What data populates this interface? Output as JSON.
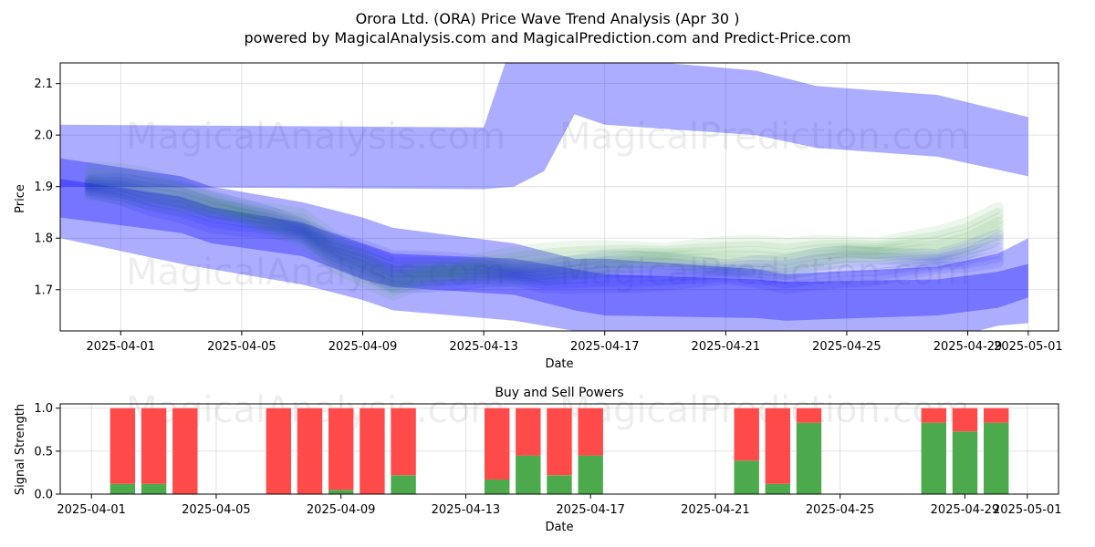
{
  "page": {
    "title": "Orora Ltd. (ORA) Price Wave Trend Analysis (Apr 30 )",
    "subtitle": "powered by MagicalAnalysis.com and MagicalPrediction.com and Predict-Price.com",
    "watermarks": [
      "MagicalAnalysis.com",
      "MagicalPrediction.com"
    ]
  },
  "colors": {
    "blue_band": "#0000ff",
    "green_band": "#2ca02c",
    "buy": "#4caa4c",
    "sell": "#ff4a4a",
    "grid": "#d9d9d9"
  },
  "chart_data": [
    {
      "type": "area",
      "title": "",
      "xlabel": "Date",
      "ylabel": "Price",
      "ylim": [
        1.62,
        2.14
      ],
      "xlim": [
        "2025-03-30",
        "2025-05-02"
      ],
      "x_ticks": [
        "2025-04-01",
        "2025-04-05",
        "2025-04-09",
        "2025-04-13",
        "2025-04-17",
        "2025-04-21",
        "2025-04-25",
        "2025-04-29",
        "2025-05-01"
      ],
      "y_ticks": [
        1.7,
        1.8,
        1.9,
        2.0,
        2.1
      ],
      "grid": true,
      "bands": [
        {
          "color": "blue",
          "x": [
            "2025-03-30",
            "2025-04-03",
            "2025-04-04",
            "2025-04-07",
            "2025-04-09",
            "2025-04-10",
            "2025-04-14",
            "2025-04-16",
            "2025-04-17",
            "2025-04-22",
            "2025-04-23",
            "2025-04-28",
            "2025-04-30",
            "2025-05-01"
          ],
          "upper": [
            1.955,
            1.92,
            1.9,
            1.87,
            1.84,
            1.82,
            1.79,
            1.76,
            1.76,
            1.74,
            1.73,
            1.745,
            1.77,
            1.8
          ],
          "lower": [
            1.8,
            1.75,
            1.74,
            1.71,
            1.68,
            1.66,
            1.64,
            1.62,
            1.62,
            1.6,
            1.58,
            1.6,
            1.63,
            1.635
          ]
        },
        {
          "color": "blue",
          "x": [
            "2025-03-30",
            "2025-04-03",
            "2025-04-04",
            "2025-04-07",
            "2025-04-09",
            "2025-04-10",
            "2025-04-14",
            "2025-04-16",
            "2025-04-17",
            "2025-04-22",
            "2025-04-23",
            "2025-04-28",
            "2025-04-30",
            "2025-05-01"
          ],
          "upper": [
            1.915,
            1.88,
            1.86,
            1.83,
            1.79,
            1.77,
            1.76,
            1.74,
            1.73,
            1.72,
            1.715,
            1.72,
            1.735,
            1.75
          ],
          "lower": [
            1.84,
            1.81,
            1.79,
            1.765,
            1.72,
            1.705,
            1.69,
            1.66,
            1.65,
            1.645,
            1.64,
            1.65,
            1.665,
            1.685
          ]
        },
        {
          "color": "blue",
          "x": [
            "2025-03-30",
            "2025-04-13",
            "2025-04-14",
            "2025-04-15",
            "2025-04-16",
            "2025-04-17",
            "2025-04-22",
            "2025-04-24",
            "2025-04-28",
            "2025-05-01"
          ],
          "upper": [
            2.02,
            2.015,
            2.19,
            2.18,
            2.16,
            2.15,
            2.125,
            2.095,
            2.078,
            2.035
          ],
          "lower": [
            1.9,
            1.895,
            1.9,
            1.93,
            2.04,
            2.02,
            2.0,
            1.975,
            1.958,
            1.92
          ]
        }
      ],
      "lines": [
        {
          "color": "blue",
          "x": [
            "2025-03-31",
            "2025-04-01",
            "2025-04-02",
            "2025-04-03",
            "2025-04-04",
            "2025-04-05",
            "2025-04-06",
            "2025-04-07",
            "2025-04-08",
            "2025-04-09",
            "2025-04-10",
            "2025-04-11",
            "2025-04-12",
            "2025-04-13",
            "2025-04-14",
            "2025-04-15",
            "2025-04-16",
            "2025-04-17",
            "2025-04-18",
            "2025-04-19",
            "2025-04-20",
            "2025-04-21",
            "2025-04-22",
            "2025-04-23",
            "2025-04-24",
            "2025-04-25",
            "2025-04-26",
            "2025-04-27",
            "2025-04-28",
            "2025-04-29",
            "2025-04-30"
          ],
          "y": [
            1.9,
            1.895,
            1.88,
            1.87,
            1.85,
            1.84,
            1.83,
            1.815,
            1.78,
            1.76,
            1.735,
            1.735,
            1.735,
            1.735,
            1.73,
            1.725,
            1.73,
            1.735,
            1.735,
            1.735,
            1.735,
            1.735,
            1.735,
            1.73,
            1.74,
            1.745,
            1.745,
            1.75,
            1.755,
            1.765,
            1.78
          ]
        },
        {
          "color": "green",
          "x": [
            "2025-03-31",
            "2025-04-01",
            "2025-04-02",
            "2025-04-03",
            "2025-04-04",
            "2025-04-05",
            "2025-04-06",
            "2025-04-07",
            "2025-04-08",
            "2025-04-09",
            "2025-04-10",
            "2025-04-11",
            "2025-04-12",
            "2025-04-13",
            "2025-04-14",
            "2025-04-15",
            "2025-04-16",
            "2025-04-17",
            "2025-04-18",
            "2025-04-19",
            "2025-04-20",
            "2025-04-21",
            "2025-04-22",
            "2025-04-23",
            "2025-04-24",
            "2025-04-25",
            "2025-04-26",
            "2025-04-27",
            "2025-04-28",
            "2025-04-29",
            "2025-04-30"
          ],
          "y": [
            1.91,
            1.905,
            1.895,
            1.88,
            1.865,
            1.85,
            1.835,
            1.82,
            1.775,
            1.745,
            1.715,
            1.73,
            1.735,
            1.74,
            1.745,
            1.75,
            1.755,
            1.76,
            1.765,
            1.765,
            1.765,
            1.765,
            1.765,
            1.76,
            1.77,
            1.775,
            1.775,
            1.78,
            1.785,
            1.8,
            1.83
          ]
        }
      ]
    },
    {
      "type": "bar",
      "title": "Buy and Sell Powers",
      "xlabel": "Date",
      "ylabel": "Signal Strength",
      "ylim": [
        0,
        1.05
      ],
      "xlim": [
        "2025-03-31",
        "2025-05-02"
      ],
      "x_ticks": [
        "2025-04-01",
        "2025-04-05",
        "2025-04-09",
        "2025-04-13",
        "2025-04-17",
        "2025-04-21",
        "2025-04-25",
        "2025-04-29",
        "2025-05-01"
      ],
      "y_ticks": [
        0.0,
        0.5,
        1.0
      ],
      "grid": true,
      "categories": [
        "2025-04-02",
        "2025-04-03",
        "2025-04-04",
        "2025-04-07",
        "2025-04-08",
        "2025-04-09",
        "2025-04-10",
        "2025-04-11",
        "2025-04-14",
        "2025-04-15",
        "2025-04-16",
        "2025-04-17",
        "2025-04-22",
        "2025-04-23",
        "2025-04-24",
        "2025-04-28",
        "2025-04-29",
        "2025-04-30"
      ],
      "series": [
        {
          "name": "Buy",
          "values": [
            0.12,
            0.12,
            0.0,
            0.0,
            0.0,
            0.05,
            0.0,
            0.22,
            0.17,
            0.45,
            0.22,
            0.45,
            0.39,
            0.12,
            0.83,
            0.83,
            0.73,
            0.83
          ]
        },
        {
          "name": "Sell",
          "values": [
            0.88,
            0.88,
            1.0,
            1.0,
            1.0,
            0.95,
            1.0,
            0.78,
            0.83,
            0.55,
            0.78,
            0.55,
            0.61,
            0.88,
            0.17,
            0.17,
            0.27,
            0.17
          ]
        }
      ]
    }
  ]
}
